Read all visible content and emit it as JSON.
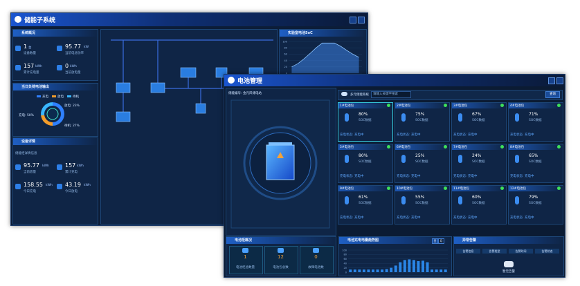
{
  "back_window": {
    "title": "储能子系统",
    "overview": {
      "title": "系统概况",
      "items": [
        {
          "value": "1",
          "unit": "台",
          "label": "设备数量"
        },
        {
          "value": "95.77",
          "unit": "kW",
          "label": "当前电池功率"
        },
        {
          "value": "157",
          "unit": "kWh",
          "label": "累计充电量"
        },
        {
          "value": "0",
          "unit": "kWh",
          "label": "当前放电量"
        }
      ]
    },
    "load": {
      "title": "当日负荷电池输出",
      "categories": [
        "充电",
        "放电",
        "待机"
      ],
      "values": [
        50,
        23,
        27
      ],
      "value_labels": [
        "充电: 50%",
        "放电: 23%",
        "待机: 27%"
      ],
      "colors": [
        "#2f80ff",
        "#f39c2a",
        "#39b6ff"
      ]
    },
    "details": {
      "title": "设备详情",
      "subtitle": "储能柜详情信息",
      "items": [
        {
          "value": "95.77",
          "unit": "kWh",
          "label": "当前容量"
        },
        {
          "value": "157",
          "unit": "kWh",
          "label": "累计充电"
        },
        {
          "value": "158.55",
          "unit": "kWh",
          "label": "今日充电"
        },
        {
          "value": "43.19",
          "unit": "kWh",
          "label": "今日放电"
        }
      ]
    },
    "soc": {
      "title": "实验室电池SoC",
      "values": [
        20,
        30,
        45,
        62,
        80,
        95,
        95,
        95,
        85,
        72,
        60,
        50
      ],
      "ylim": [
        0,
        100
      ],
      "yticks": [
        0,
        20,
        40,
        60,
        80,
        100
      ],
      "color": "#3d7fe0"
    }
  },
  "front_window": {
    "title": "电池管理",
    "cabinet_label": "储能编号: 金元风储电站",
    "search": {
      "label": "多元储能系统",
      "placeholder": "请输入关键字搜索",
      "button": "查询"
    },
    "batteries": [
      {
        "name": "1#电池包",
        "soc": "80%",
        "soc_label": "SOC数据",
        "status": "充电状态: 充电中"
      },
      {
        "name": "2#电池包",
        "soc": "75%",
        "soc_label": "SOC数据",
        "status": "充电状态: 充电中"
      },
      {
        "name": "3#电池包",
        "soc": "67%",
        "soc_label": "SOC数据",
        "status": "充电状态: 充电中"
      },
      {
        "name": "4#电池包",
        "soc": "71%",
        "soc_label": "SOC数据",
        "status": "充电状态: 充电中"
      },
      {
        "name": "5#电池包",
        "soc": "80%",
        "soc_label": "SOC数据",
        "status": "充电状态: 充电中"
      },
      {
        "name": "6#电池包",
        "soc": "25%",
        "soc_label": "SOC数据",
        "status": "充电状态: 充电中"
      },
      {
        "name": "7#电池包",
        "soc": "24%",
        "soc_label": "SOC数据",
        "status": "充电状态: 充电中"
      },
      {
        "name": "8#电池包",
        "soc": "65%",
        "soc_label": "SOC数据",
        "status": "充电状态: 充电中"
      },
      {
        "name": "9#电池包",
        "soc": "61%",
        "soc_label": "SOC数据",
        "status": "充电状态: 充电中"
      },
      {
        "name": "10#电池包",
        "soc": "55%",
        "soc_label": "SOC数据",
        "status": "充电状态: 充电中"
      },
      {
        "name": "11#电池包",
        "soc": "60%",
        "soc_label": "SOC数据",
        "status": "充电状态: 充电中"
      },
      {
        "name": "12#电池包",
        "soc": "79%",
        "soc_label": "SOC数据",
        "status": "充电状态: 充电中"
      }
    ],
    "summary": {
      "title": "电池柜概况",
      "items": [
        {
          "value": "1",
          "label": "电池柜总数量"
        },
        {
          "value": "12",
          "label": "电池包总数"
        },
        {
          "value": "0",
          "label": "故障电池数"
        }
      ]
    },
    "trend": {
      "title": "电池充电电量趋势图",
      "tabs": [
        "日",
        "月"
      ],
      "values": [
        12,
        12,
        12,
        12,
        12,
        12,
        12,
        12,
        14,
        20,
        30,
        45,
        55,
        58,
        55,
        50,
        52,
        45,
        12,
        12,
        12,
        12
      ],
      "ylim": [
        0,
        100
      ],
      "yticks": [
        0,
        20,
        40,
        60,
        80,
        100
      ],
      "color": "#2a86e8"
    },
    "alarms": {
      "title": "异常告警",
      "columns": [
        "告警信息",
        "告警类型",
        "告警时间",
        "告警状态"
      ],
      "empty": "暂无告警"
    }
  }
}
